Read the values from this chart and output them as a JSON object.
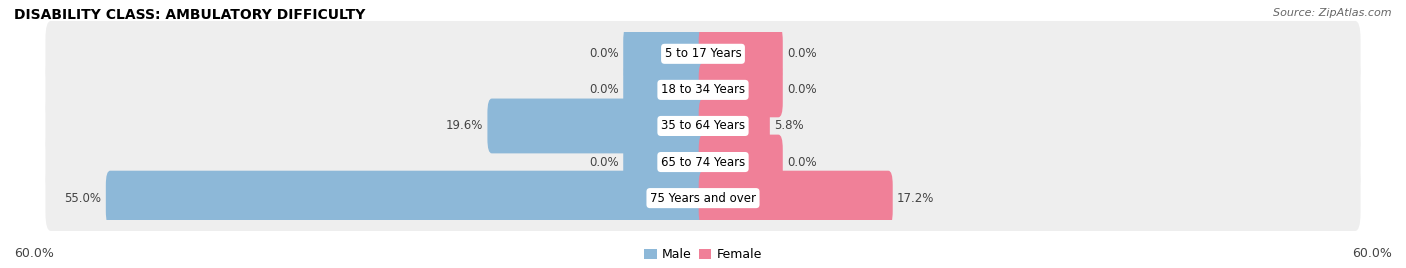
{
  "title": "DISABILITY CLASS: AMBULATORY DIFFICULTY",
  "source": "Source: ZipAtlas.com",
  "categories": [
    "5 to 17 Years",
    "18 to 34 Years",
    "35 to 64 Years",
    "65 to 74 Years",
    "75 Years and over"
  ],
  "male_values": [
    0.0,
    0.0,
    19.6,
    0.0,
    55.0
  ],
  "female_values": [
    0.0,
    0.0,
    5.8,
    0.0,
    17.2
  ],
  "max_val": 60.0,
  "stub_val": 7.0,
  "male_color": "#8db8d8",
  "female_color": "#f08098",
  "row_bg_color": "#eeeeee",
  "label_color": "#444444",
  "title_fontsize": 10,
  "axis_label_fontsize": 9,
  "bar_label_fontsize": 8.5,
  "category_fontsize": 8.5,
  "legend_fontsize": 9,
  "source_fontsize": 8
}
